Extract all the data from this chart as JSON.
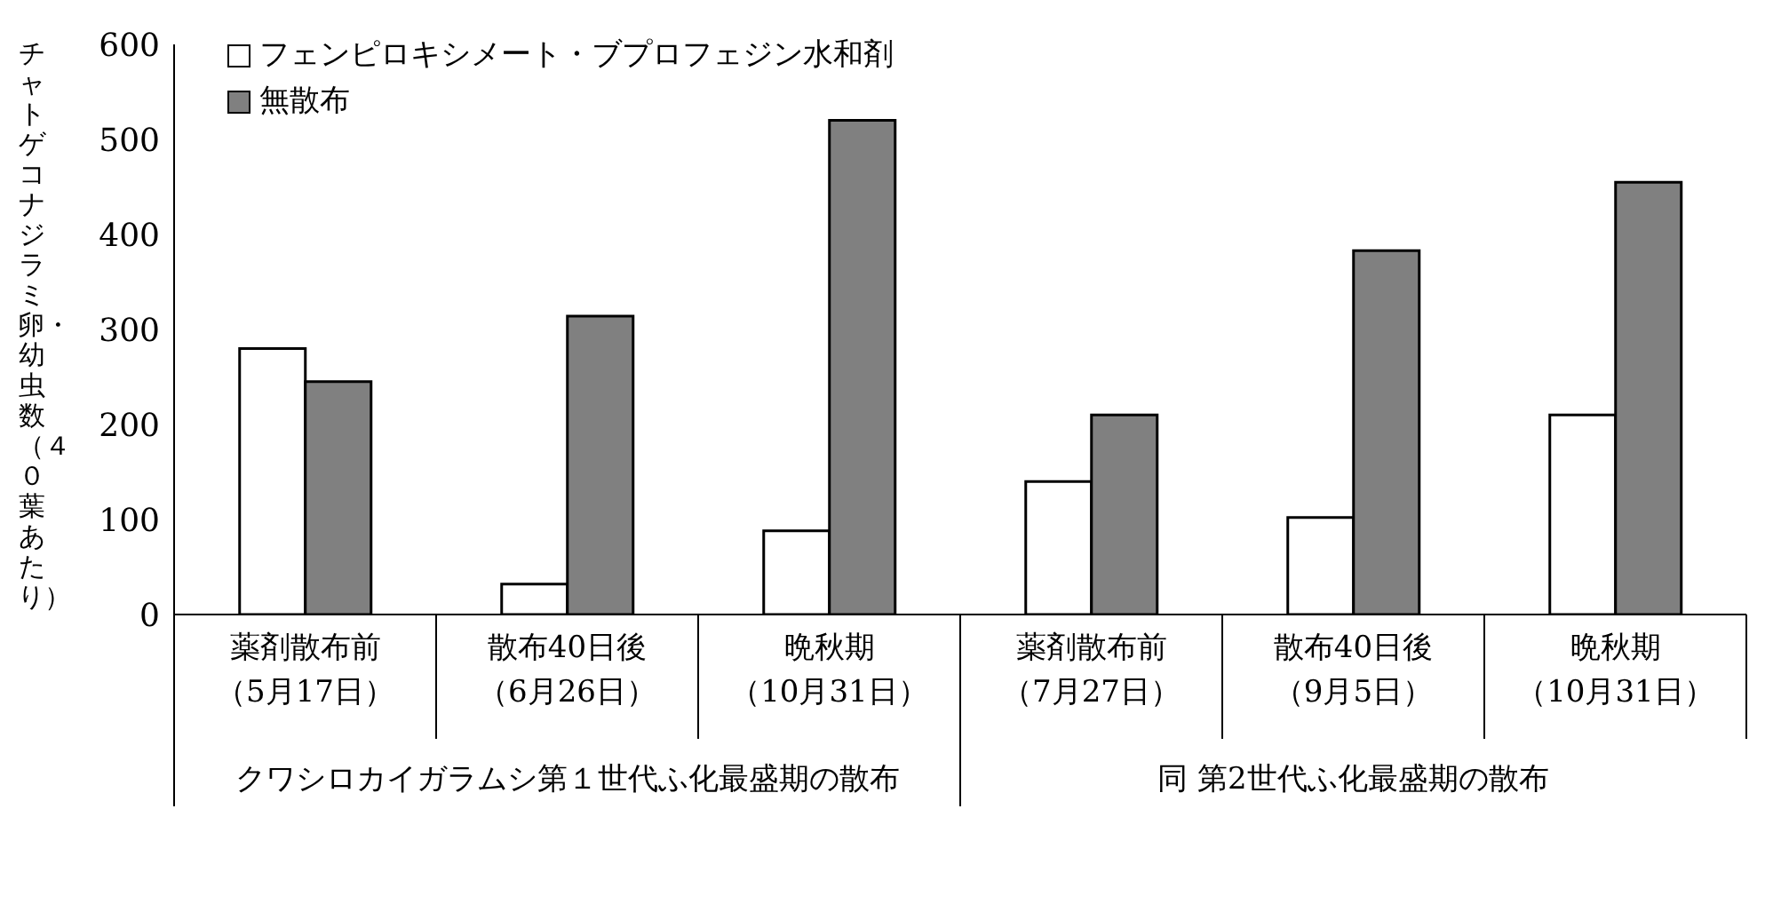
{
  "chart_data": {
    "type": "bar",
    "ylabel": "チャトゲコナジラミ卵・幼虫数（４０葉あたり）",
    "categories": [
      "薬剤散布前（5月17日）",
      "散布40日後（6月26日）",
      "晩秋期（10月31日）",
      "薬剤散布前（7月27日）",
      "散布40日後（9月5日）",
      "晩秋期（10月31日）"
    ],
    "series": [
      {
        "name": "フェンピロキシメート・ブプロフェジン水和剤",
        "color": "#ffffff",
        "values": [
          280,
          32,
          88,
          140,
          102,
          210
        ]
      },
      {
        "name": "無散布",
        "color": "#808080",
        "values": [
          245,
          314,
          520,
          210,
          383,
          455
        ]
      }
    ],
    "ylim": [
      0,
      600
    ],
    "yticks": [
      0,
      100,
      200,
      300,
      400,
      500,
      600
    ],
    "grid": false,
    "legend": "top left",
    "annotations": [
      "クワシロカイガラムシ第１世代ふ化最盛期の散布",
      "同 第2世代ふ化最盛期の散布"
    ]
  }
}
